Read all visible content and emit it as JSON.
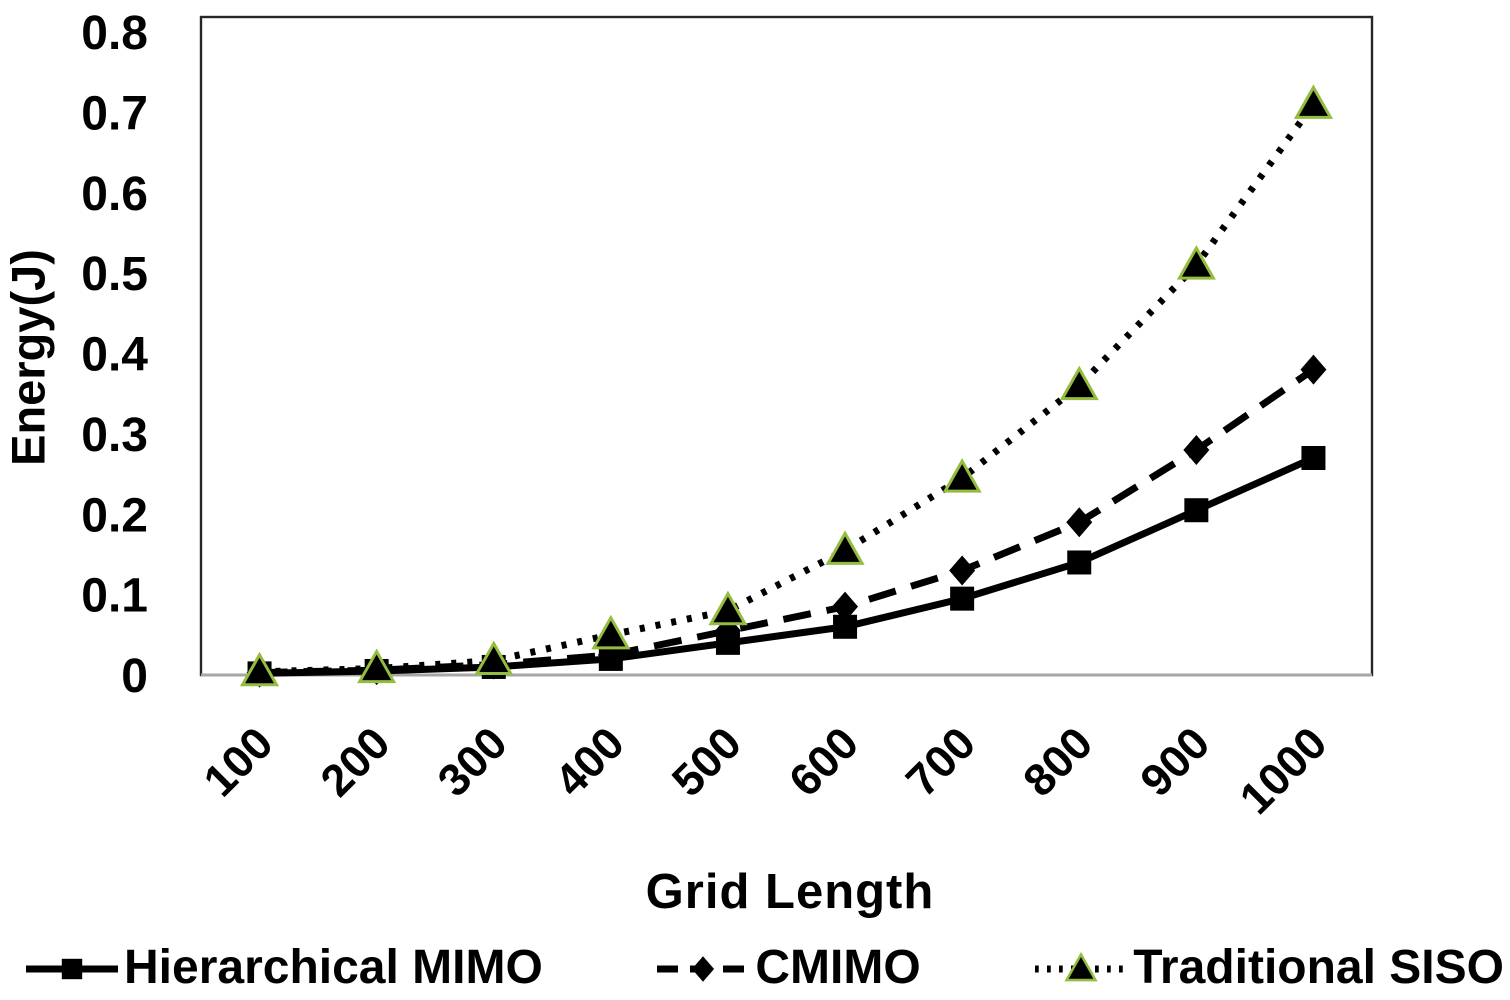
{
  "chart_data": {
    "type": "line",
    "title": "",
    "xlabel": "Grid Length",
    "ylabel": "Energy(J)",
    "categories": [
      100,
      200,
      300,
      400,
      500,
      600,
      700,
      800,
      900,
      1000
    ],
    "x_tick_labels": [
      "100",
      "200",
      "300",
      "400",
      "500",
      "600",
      "700",
      "800",
      "900",
      "1000"
    ],
    "y_ticks": [
      0,
      0.1,
      0.2,
      0.3,
      0.4,
      0.5,
      0.6,
      0.7,
      0.8
    ],
    "y_tick_labels": [
      "0",
      "0.1",
      "0.2",
      "0.3",
      "0.4",
      "0.5",
      "0.6",
      "0.7",
      "0.8"
    ],
    "ylim": [
      0,
      0.8
    ],
    "grid": false,
    "legend_position": "bottom",
    "series": [
      {
        "name": "Hierarchical MIMO",
        "marker": "square",
        "line_style": "solid",
        "color": "#000000",
        "values": [
          0.002,
          0.005,
          0.01,
          0.02,
          0.04,
          0.06,
          0.095,
          0.14,
          0.205,
          0.27
        ]
      },
      {
        "name": "CMIMO",
        "marker": "diamond",
        "line_style": "dashed",
        "color": "#000000",
        "values": [
          0.003,
          0.006,
          0.013,
          0.025,
          0.055,
          0.085,
          0.13,
          0.19,
          0.28,
          0.38
        ]
      },
      {
        "name": "Traditional SISO",
        "marker": "triangle",
        "line_style": "dotted",
        "color": "#000000",
        "marker_edge_color": "#94bc3e",
        "values": [
          0.004,
          0.008,
          0.018,
          0.05,
          0.08,
          0.155,
          0.245,
          0.36,
          0.51,
          0.71
        ]
      }
    ],
    "colors": {
      "plot_border": "#262626",
      "baseline": "#a6a6a6",
      "text": "#000000",
      "triangle_edge": "#94bc3e"
    }
  }
}
